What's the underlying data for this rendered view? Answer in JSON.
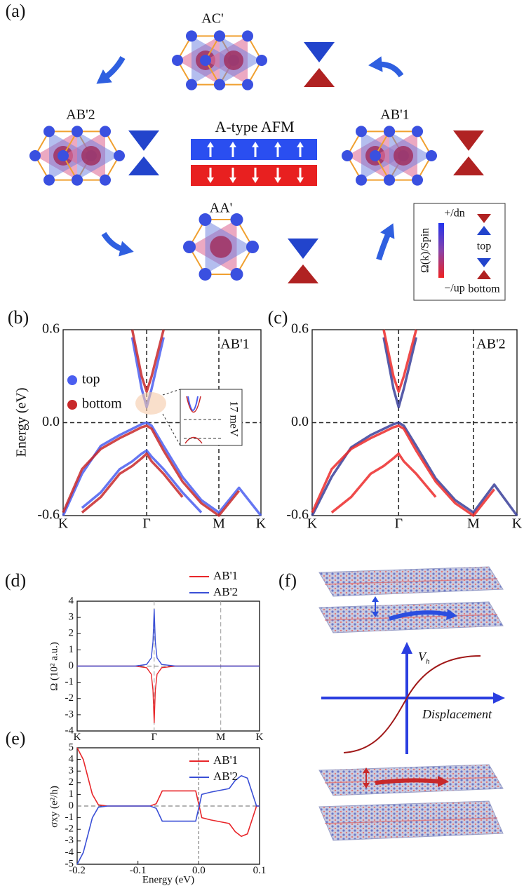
{
  "panel_a": {
    "label": "(a)",
    "stackings": [
      "AC'",
      "AB'2",
      "AB'1",
      "AA'"
    ],
    "afm_title": "A-type AFM",
    "legend": {
      "top_label": "+/dn",
      "axis_label": "Ω(k)/Spin",
      "bottom_label": "−/up",
      "top": "top",
      "bottom": "bottom"
    }
  },
  "chart_data": [
    {
      "type": "line",
      "panel": "(b)",
      "annotation": "AB'1",
      "y_label": "Energy (eV)",
      "inset_label": "17 meV",
      "x": [
        0,
        0.3,
        0.6,
        0.9,
        1.1,
        1.25,
        1.33,
        1.41,
        1.6,
        1.9,
        2.2,
        2.48,
        2.8,
        3.15
      ],
      "xlim": [
        0,
        3.15
      ],
      "xticks": [
        {
          "value": 0,
          "label": "K"
        },
        {
          "value": 1.33,
          "label": "Γ"
        },
        {
          "value": 2.48,
          "label": "M"
        },
        {
          "value": 3.15,
          "label": "K"
        }
      ],
      "ylim": [
        -0.6,
        0.6
      ],
      "yticks": [
        -0.6,
        {
          "value": 0,
          "label": "0.0"
        },
        0.6
      ],
      "grid_x": true,
      "zero_y": true,
      "legend_style": "marker",
      "series": [
        {
          "name": "top",
          "color": "#4a5ef0",
          "bands": [
            [
              null,
              null,
              null,
              null,
              0.55,
              0.22,
              0.1,
              0.22,
              0.55,
              null,
              null,
              null,
              null,
              null
            ],
            [
              -0.6,
              -0.33,
              -0.15,
              -0.08,
              -0.04,
              -0.01,
              0.0,
              -0.02,
              -0.15,
              -0.35,
              -0.5,
              -0.58,
              -0.42,
              -0.6
            ],
            [
              null,
              -0.55,
              -0.45,
              -0.3,
              -0.25,
              -0.2,
              -0.18,
              -0.22,
              -0.3,
              -0.45,
              -0.58,
              null,
              null,
              null
            ]
          ]
        },
        {
          "name": "bottom",
          "color": "#c8282a",
          "bands": [
            [
              null,
              null,
              null,
              null,
              0.6,
              0.3,
              0.2,
              0.3,
              0.6,
              null,
              null,
              null,
              null,
              null
            ],
            [
              -0.58,
              -0.3,
              -0.17,
              -0.1,
              -0.06,
              -0.03,
              -0.02,
              -0.04,
              -0.18,
              -0.38,
              -0.52,
              -0.6,
              -0.44,
              null
            ],
            [
              null,
              -0.58,
              -0.48,
              -0.33,
              -0.28,
              -0.23,
              -0.2,
              -0.25,
              -0.33,
              -0.48,
              null,
              null,
              null,
              null
            ]
          ]
        }
      ]
    },
    {
      "type": "line",
      "panel": "(c)",
      "annotation": "AB'2",
      "x": [
        0,
        0.3,
        0.6,
        0.9,
        1.1,
        1.25,
        1.33,
        1.41,
        1.6,
        1.9,
        2.2,
        2.48,
        2.8,
        3.15
      ],
      "xlim": [
        0,
        3.15
      ],
      "xticks": [
        {
          "value": 0,
          "label": "K"
        },
        {
          "value": 1.33,
          "label": "Γ"
        },
        {
          "value": 2.48,
          "label": "M"
        },
        {
          "value": 3.15,
          "label": "K"
        }
      ],
      "ylim": [
        -0.6,
        0.6
      ],
      "yticks": [
        -0.6,
        {
          "value": 0,
          "label": "0.0"
        },
        0.6
      ],
      "grid_x": true,
      "zero_y": true,
      "series": [
        {
          "color": "#3a3f9a",
          "bands": [
            [
              null,
              null,
              null,
              null,
              0.55,
              0.22,
              0.1,
              0.22,
              0.55,
              null,
              null,
              null,
              null,
              null
            ],
            [
              -0.6,
              -0.35,
              -0.16,
              -0.08,
              -0.04,
              -0.01,
              0.0,
              -0.02,
              -0.15,
              -0.36,
              -0.5,
              -0.58,
              -0.4,
              -0.6
            ]
          ]
        },
        {
          "color": "#ec2a2a",
          "bands": [
            [
              null,
              null,
              null,
              null,
              0.6,
              0.3,
              0.2,
              0.3,
              0.6,
              null,
              null,
              null,
              null,
              null
            ],
            [
              -0.58,
              -0.3,
              -0.17,
              -0.1,
              -0.06,
              -0.03,
              -0.02,
              -0.04,
              -0.18,
              -0.38,
              -0.52,
              -0.6,
              -0.43,
              null
            ],
            [
              null,
              -0.58,
              -0.48,
              -0.33,
              -0.28,
              -0.23,
              -0.2,
              -0.25,
              -0.33,
              -0.48,
              null,
              null,
              null,
              null
            ]
          ]
        }
      ]
    },
    {
      "type": "line",
      "panel": "(d)",
      "y_label": "Ω (10² a.u.)",
      "x": [
        0,
        1.0,
        1.2,
        1.28,
        1.31,
        1.33,
        1.35,
        1.38,
        1.46,
        1.7,
        2.48,
        3.15
      ],
      "xlim": [
        0,
        3.15
      ],
      "xticks": [
        {
          "value": 0,
          "label": "K"
        },
        {
          "value": 1.33,
          "label": "Γ"
        },
        {
          "value": 2.48,
          "label": "M"
        },
        {
          "value": 3.15,
          "label": "K"
        }
      ],
      "ylim": [
        -4,
        4
      ],
      "yticks": [
        -4,
        -3,
        -2,
        -1,
        0,
        1,
        2,
        3,
        4
      ],
      "grid_x": true,
      "zero_y": true,
      "legend_style": "line",
      "series": [
        {
          "name": "AB'1",
          "color": "#e8262a",
          "values": [
            0,
            0,
            -0.1,
            -0.5,
            -1.5,
            -3.5,
            -1.5,
            -0.5,
            -0.1,
            0,
            0,
            0
          ]
        },
        {
          "name": "AB'2",
          "color": "#3a4fd6",
          "values": [
            0,
            0,
            0.1,
            0.5,
            1.5,
            3.5,
            1.5,
            0.5,
            0.1,
            0,
            0,
            0
          ]
        }
      ]
    },
    {
      "type": "line",
      "panel": "(e)",
      "y_label": "σxy (e²/h)",
      "x_label": "Energy (eV)",
      "x": [
        -0.2,
        -0.19,
        -0.175,
        -0.165,
        -0.15,
        -0.08,
        -0.07,
        -0.06,
        -0.005,
        0.005,
        0.02,
        0.05,
        0.06,
        0.07,
        0.08,
        0.095,
        0.1
      ],
      "xlim": [
        -0.2,
        0.1
      ],
      "xticks": [
        -0.2,
        -0.1,
        {
          "value": 0,
          "label": "0.0"
        },
        0.1
      ],
      "ylim": [
        -5,
        5
      ],
      "yticks": [
        -5,
        -4,
        -3,
        -2,
        -1,
        0,
        1,
        2,
        3,
        4,
        5
      ],
      "zero_x": true,
      "zero_y": true,
      "legend_style": "line",
      "series": [
        {
          "name": "AB'1",
          "color": "#e8262a",
          "values": [
            5,
            4,
            1,
            0.1,
            0,
            0,
            0.2,
            1.3,
            1.3,
            -1,
            -1.2,
            -1.5,
            -2.2,
            -2.6,
            -2.4,
            0,
            0
          ]
        },
        {
          "name": "AB'2",
          "color": "#3a4fd6",
          "values": [
            -5,
            -4,
            -1,
            -0.1,
            0,
            0,
            -0.2,
            -1.3,
            -1.3,
            1,
            1.2,
            1.5,
            2.2,
            2.6,
            2.4,
            0,
            0
          ]
        }
      ]
    }
  ],
  "panel_f": {
    "label": "(f)",
    "y_label": "V",
    "y_label_sub": "h",
    "x_label": "Displacement"
  }
}
